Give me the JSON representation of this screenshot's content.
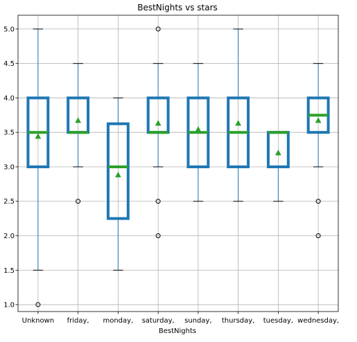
{
  "chart_data": {
    "type": "box",
    "title": "BestNights vs stars",
    "xlabel": "BestNights",
    "ylabel": "",
    "ylim": [
      0.9,
      5.2
    ],
    "yticks": [
      "1.0",
      "1.5",
      "2.0",
      "2.5",
      "3.0",
      "3.5",
      "4.0",
      "4.5",
      "5.0"
    ],
    "grid": true,
    "colors": {
      "box": "#1f77b4",
      "median": "#2ca02c",
      "mean": "#2ca02c",
      "whisker": "#1f77b4",
      "outlier": "#000000",
      "grid": "#b0b0b0"
    },
    "categories": [
      "Unknown",
      "friday,",
      "monday,",
      "saturday,",
      "sunday,",
      "thursday,",
      "tuesday,",
      "wednesday,"
    ],
    "boxes": [
      {
        "category": "Unknown",
        "whislo": 1.5,
        "q1": 3.0,
        "med": 3.5,
        "q3": 4.0,
        "whishi": 5.0,
        "mean": 3.44,
        "fliers": [
          1.0
        ]
      },
      {
        "category": "friday,",
        "whislo": 3.0,
        "q1": 3.5,
        "med": 3.5,
        "q3": 4.0,
        "whishi": 4.5,
        "mean": 3.67,
        "fliers": [
          2.5
        ]
      },
      {
        "category": "monday,",
        "whislo": 1.5,
        "q1": 2.25,
        "med": 3.0,
        "q3": 3.625,
        "whishi": 4.0,
        "mean": 2.88,
        "fliers": []
      },
      {
        "category": "saturday,",
        "whislo": 3.0,
        "q1": 3.5,
        "med": 3.5,
        "q3": 4.0,
        "whishi": 4.5,
        "mean": 3.63,
        "fliers": [
          5.0,
          2.5,
          2.0
        ]
      },
      {
        "category": "sunday,",
        "whislo": 2.5,
        "q1": 3.0,
        "med": 3.5,
        "q3": 4.0,
        "whishi": 4.5,
        "mean": 3.54,
        "fliers": []
      },
      {
        "category": "thursday,",
        "whislo": 2.5,
        "q1": 3.0,
        "med": 3.5,
        "q3": 4.0,
        "whishi": 5.0,
        "mean": 3.63,
        "fliers": []
      },
      {
        "category": "tuesday,",
        "whislo": 2.5,
        "q1": 3.0,
        "med": 3.5,
        "q3": 3.5,
        "whishi": 3.5,
        "mean": 3.2,
        "fliers": []
      },
      {
        "category": "wednesday,",
        "whislo": 3.0,
        "q1": 3.5,
        "med": 3.75,
        "q3": 4.0,
        "whishi": 4.5,
        "mean": 3.67,
        "fliers": [
          2.5,
          2.0
        ]
      }
    ]
  }
}
